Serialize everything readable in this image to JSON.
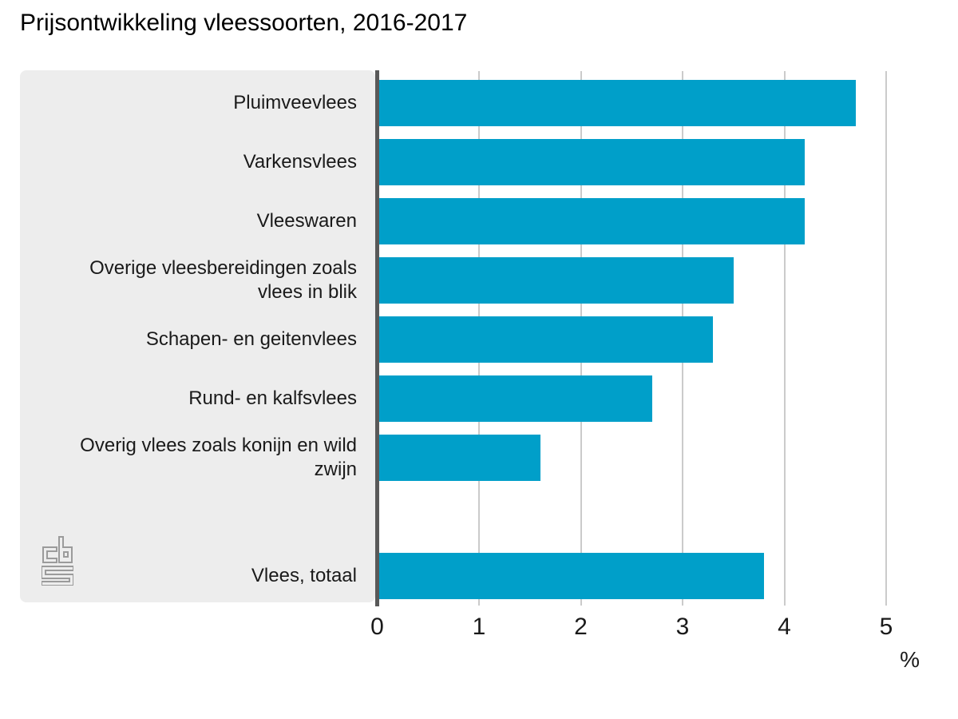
{
  "title": "Prijsontwikkeling vleessoorten, 2016-2017",
  "chart_data": {
    "type": "bar",
    "orientation": "horizontal",
    "title": "Prijsontwikkeling vleessoorten, 2016-2017",
    "xlabel": "%",
    "xlim": [
      0,
      5
    ],
    "xticks": [
      "0",
      "1",
      "2",
      "3",
      "4",
      "5"
    ],
    "grid": true,
    "bar_color": "#009fc9",
    "categories": [
      "Pluimveevlees",
      "Varkensvlees",
      "Vleeswaren",
      "Overige vleesbereidingen zoals\nvlees in blik",
      "Schapen- en geitenvlees",
      "Rund- en kalfsvlees",
      "Overig vlees zoals konijn en wild\nzwijn",
      "Vlees, totaal"
    ],
    "values": [
      4.7,
      4.2,
      4.2,
      3.5,
      3.3,
      2.7,
      1.6,
      3.8
    ],
    "total_category_index": 7
  },
  "logo": {
    "name": "cbs-logo",
    "color": "#9b9b9b"
  },
  "colors": {
    "panel_background": "#ededed",
    "zero_axis": "#595959",
    "gridline": "#cbcbcb",
    "text": "#1a1a1a"
  }
}
